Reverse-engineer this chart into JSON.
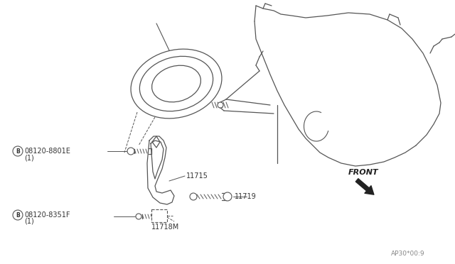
{
  "bg_color": "#ffffff",
  "line_color": "#555555",
  "text_color": "#333333",
  "fig_width": 6.4,
  "fig_height": 3.72,
  "dpi": 100,
  "labels": {
    "A_part": "08120-8801E",
    "A_qty": "(1)",
    "B_part": "08120-8351F",
    "B_qty": "(1)",
    "part_11715": "11715",
    "part_11719": "11719",
    "part_11718M": "11718M",
    "front": "FRONT",
    "code": "AP30*00:9"
  }
}
